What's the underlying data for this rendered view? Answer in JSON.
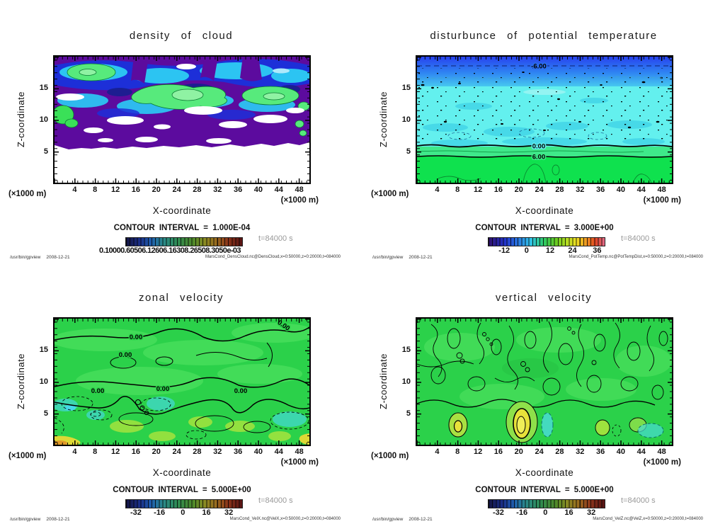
{
  "shared": {
    "command": "/usr/bin/gpview",
    "date": "2008-12-21",
    "y_axis_label": "Z-coordinate",
    "x_axis_label": "X-coordinate",
    "unit_label": "(×1000 m)",
    "x_ticks": [
      "4",
      "8",
      "12",
      "16",
      "20",
      "24",
      "28",
      "32",
      "36",
      "40",
      "44",
      "48"
    ],
    "y_tick_labels": [
      "15",
      "10",
      "5"
    ]
  },
  "colors": {
    "cloud_purple": "#5c0b9e",
    "cloud_blue": "#1d2fd8",
    "cloud_cyan": "#2cc4f2",
    "cloud_green": "#57ea7c",
    "velocity_green_bg": "#2bd14a",
    "pot_temp_cyan": "#63f0ee",
    "pot_temp_green": "#0fe14e",
    "yellow_extreme": "#e8e13a",
    "time_label_gray": "#999999"
  },
  "panels": [
    {
      "title": "density of cloud",
      "contour_interval": "CONTOUR INTERVAL = 1.000E-04",
      "time": "t=84000 s",
      "colorbar_label_overlap": "0.10000.60506.12606.16308.26508.3050e-03",
      "footer_right": "MarsCond_DensCloud.nc@DensCloud,x=0:50000,z=0:20000,t=084000"
    },
    {
      "title": "disturbunce of potential temperature",
      "contour_interval": "CONTOUR INTERVAL = 3.000E+00",
      "time": "t=84000 s",
      "colorbar_ticks": [
        "-12",
        "0",
        "12",
        "24",
        "36"
      ],
      "contour_labels": [
        "-6.00",
        "0.00",
        "6.00"
      ],
      "footer_right": "MarsCond_PotTemp.nc@PotTempDist,x=0:50000,z=0:20000,t=084000"
    },
    {
      "title": "zonal velocity",
      "contour_interval": "CONTOUR INTERVAL = 5.000E+00",
      "time": "t=84000 s",
      "colorbar_ticks": [
        "-32",
        "-16",
        "0",
        "16",
        "32"
      ],
      "contour_labels": [
        "0.00",
        "0.00",
        "0.00",
        "0.00",
        "0.00",
        "0.00"
      ],
      "footer_right": "MarsCond_VelX.nc@VelX,x=0:50000,z=0:20000,t=084000"
    },
    {
      "title": "vertical velocity",
      "contour_interval": "CONTOUR INTERVAL = 5.000E+00",
      "time": "t=84000 s",
      "colorbar_ticks": [
        "-32",
        "-16",
        "0",
        "16",
        "32"
      ],
      "footer_right": "MarsCond_VelZ.nc@VelZ,x=0:50000,z=0:20000,t=084000"
    }
  ],
  "chart_data": [
    {
      "type": "contour",
      "title": "density of cloud",
      "xlabel": "X-coordinate",
      "ylabel": "Z-coordinate",
      "x_unit": "×1000 m",
      "y_unit": "×1000 m",
      "xlim": [
        0,
        50
      ],
      "ylim": [
        0,
        20
      ],
      "x_ticks": [
        4,
        8,
        12,
        16,
        20,
        24,
        28,
        32,
        36,
        40,
        44,
        48
      ],
      "y_ticks": [
        5,
        10,
        15
      ],
      "contour_interval": "1.000E-04",
      "colorbar_labels_overlapping": "0.10000.60506.12606.16308.26508.3050e-03",
      "time": "t=84000 s",
      "source": "MarsCond_DensCloud.nc@DensCloud,x=0:50000,z=0:20000,t=084000"
    },
    {
      "type": "contour",
      "title": "disturbunce of potential temperature",
      "xlabel": "X-coordinate",
      "ylabel": "Z-coordinate",
      "x_unit": "×1000 m",
      "y_unit": "×1000 m",
      "xlim": [
        0,
        50
      ],
      "ylim": [
        0,
        20
      ],
      "x_ticks": [
        4,
        8,
        12,
        16,
        20,
        24,
        28,
        32,
        36,
        40,
        44,
        48
      ],
      "y_ticks": [
        5,
        10,
        15
      ],
      "contour_interval": "3.000E+00",
      "colorbar_ticks": [
        -12,
        0,
        12,
        24,
        36
      ],
      "contour_line_labels": [
        -6,
        0,
        6
      ],
      "time": "t=84000 s",
      "source": "MarsCond_PotTemp.nc@PotTempDist,x=0:50000,z=0:20000,t=084000"
    },
    {
      "type": "contour",
      "title": "zonal velocity",
      "xlabel": "X-coordinate",
      "ylabel": "Z-coordinate",
      "x_unit": "×1000 m",
      "y_unit": "×1000 m",
      "xlim": [
        0,
        50
      ],
      "ylim": [
        0,
        20
      ],
      "x_ticks": [
        4,
        8,
        12,
        16,
        20,
        24,
        28,
        32,
        36,
        40,
        44,
        48
      ],
      "y_ticks": [
        5,
        10,
        15
      ],
      "contour_interval": "5.000E+00",
      "colorbar_ticks": [
        -32,
        -16,
        0,
        16,
        32
      ],
      "contour_line_labels": [
        0
      ],
      "time": "t=84000 s",
      "source": "MarsCond_VelX.nc@VelX,x=0:50000,z=0:20000,t=084000"
    },
    {
      "type": "contour",
      "title": "vertical velocity",
      "xlabel": "X-coordinate",
      "ylabel": "Z-coordinate",
      "x_unit": "×1000 m",
      "y_unit": "×1000 m",
      "xlim": [
        0,
        50
      ],
      "ylim": [
        0,
        20
      ],
      "x_ticks": [
        4,
        8,
        12,
        16,
        20,
        24,
        28,
        32,
        36,
        40,
        44,
        48
      ],
      "y_ticks": [
        5,
        10,
        15
      ],
      "contour_interval": "5.000E+00",
      "colorbar_ticks": [
        -32,
        -16,
        0,
        16,
        32
      ],
      "time": "t=84000 s",
      "source": "MarsCond_VelZ.nc@VelZ,x=0:50000,z=0:20000,t=084000"
    }
  ]
}
